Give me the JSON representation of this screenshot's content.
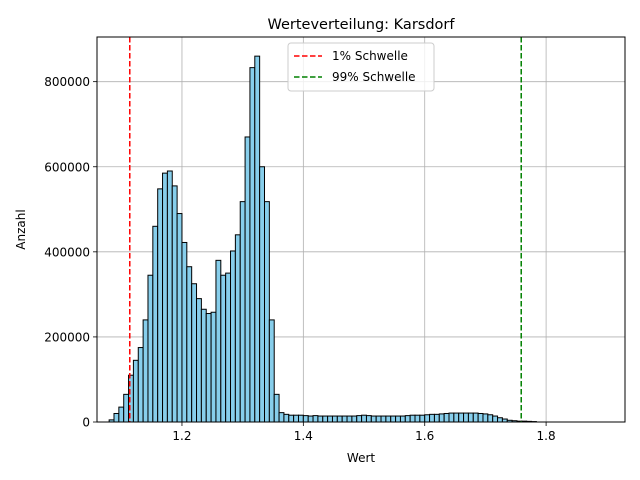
{
  "chart_data": {
    "type": "histogram",
    "title": "Werteverteilung: Karsdorf",
    "xlabel": "Wert",
    "ylabel": "Anzahl",
    "xlim": [
      1.06,
      1.93
    ],
    "ylim": [
      0,
      905000
    ],
    "x_ticks": [
      1.2,
      1.4,
      1.6,
      1.8
    ],
    "x_tick_labels": [
      "1.2",
      "1.4",
      "1.6",
      "1.8"
    ],
    "y_ticks": [
      0,
      200000,
      400000,
      600000,
      800000
    ],
    "y_tick_labels": [
      "0",
      "200000",
      "400000",
      "600000",
      "800000"
    ],
    "grid": true,
    "bin_start": 1.08,
    "bin_width": 0.008,
    "bar_color": "#87ceeb",
    "edge_color": "#000000",
    "values": [
      5000,
      20000,
      35000,
      65000,
      110000,
      145000,
      175000,
      240000,
      345000,
      460000,
      548000,
      585000,
      590000,
      555000,
      490000,
      422000,
      365000,
      325000,
      290000,
      265000,
      255000,
      258000,
      380000,
      345000,
      350000,
      402000,
      440000,
      518000,
      670000,
      833000,
      860000,
      600000,
      518000,
      240000,
      65000,
      22000,
      18000,
      16000,
      16000,
      16000,
      15000,
      14000,
      15000,
      14000,
      14000,
      14000,
      14000,
      14000,
      14000,
      14000,
      14000,
      15000,
      16000,
      15000,
      14000,
      14000,
      14000,
      14000,
      14000,
      14000,
      14000,
      15000,
      16000,
      16000,
      16000,
      17000,
      18000,
      18000,
      19000,
      20000,
      21000,
      21000,
      21000,
      21000,
      21000,
      21000,
      20000,
      19000,
      17000,
      14000,
      10000,
      7000,
      4000,
      3000,
      2000,
      2000,
      1500,
      1000
    ],
    "thresholds": [
      {
        "name": "1% Schwelle",
        "x": 1.114,
        "color": "#ff0000"
      },
      {
        "name": "99% Schwelle",
        "x": 1.759,
        "color": "#008000"
      }
    ],
    "legend_position": "upper center"
  }
}
